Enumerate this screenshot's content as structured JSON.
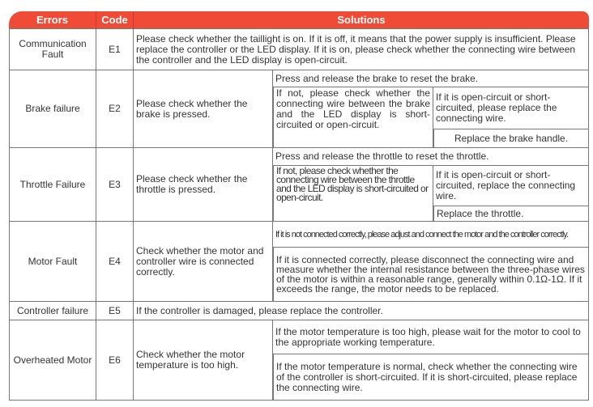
{
  "header": {
    "errors": "Errors",
    "code": "Code",
    "solutions": "Solutions"
  },
  "colors": {
    "header_bg": "#ef4b36",
    "border": "#777777"
  },
  "rows": {
    "e1": {
      "error": "Communication Fault",
      "code": "E1",
      "solution": "Please check whether the taillight is on. If it is off, it means that the power supply is insufficient. Please replace the controller or the LED display. If it is on, please check whether the connecting wire between the controller and the LED display is open-circuit."
    },
    "e2": {
      "error": "Brake failure",
      "code": "E2",
      "check": "Please check whether the brake is pressed.",
      "step1": "Press and release the brake to reset the brake.",
      "step2": "If not, please check whether the connecting wire between the brake and the LED display is short-circuited or open-circuit.",
      "step3a": "If it is open-circuit or short-circuited, please replace the connecting wire.",
      "step3b": "Replace the brake handle."
    },
    "e3": {
      "error": "Throttle Failure",
      "code": "E3",
      "check": "Please check whether the throttle is pressed.",
      "step1": "Press and release the throttle to reset the throttle.",
      "step2": "If not, please check whether the connecting wire between the throttle and the LED display is short-circuited or open-circuit.",
      "step3a": "If it is open-circuit or short-circuited, replace the connecting wire.",
      "step3b": "Replace the throttle."
    },
    "e4": {
      "error": "Motor Fault",
      "code": "E4",
      "check": "Check whether the motor and controller wire is connected correctly.",
      "step1": "If it is not connected correctly, please adjust and connect the motor and the controller correctly.",
      "step2": "If it is connected correctly, please disconnect the connecting wire and measure whether the internal resistance between the three-phase wires of the motor is within a reasonable range, generally within 0.1Ω-1Ω. If it exceeds the range, the motor needs to be replaced."
    },
    "e5": {
      "error": "Controller failure",
      "code": "E5",
      "solution": "If the controller is damaged, please replace the controller."
    },
    "e6": {
      "error": "Overheated Motor",
      "code": "E6",
      "check": "Check whether the motor temperature is too high.",
      "step1": "If the motor temperature is too high, please wait for the motor to cool to the appropriate working temperature.",
      "step2": "If the motor temperature is normal, check whether the connecting wire of the controller is short-circuited. If it is short-circuited, please replace the connecting wire."
    }
  }
}
